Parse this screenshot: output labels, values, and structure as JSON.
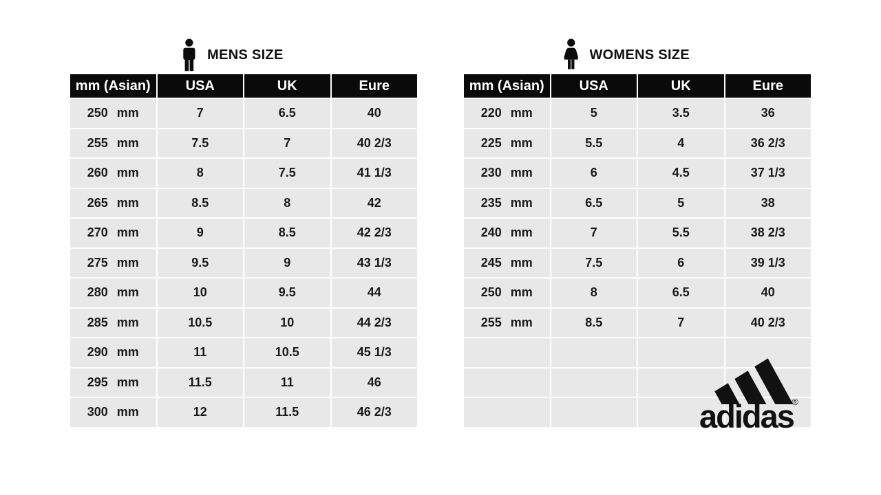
{
  "chart_data": [
    {
      "type": "table",
      "title": "MENS SIZE",
      "icon": "man-icon",
      "columns": [
        "mm (Asian)",
        "USA",
        "UK",
        "Eure"
      ],
      "rows": [
        [
          "250 mm",
          "7",
          "6.5",
          "40"
        ],
        [
          "255 mm",
          "7.5",
          "7",
          "40 2/3"
        ],
        [
          "260 mm",
          "8",
          "7.5",
          "41 1/3"
        ],
        [
          "265 mm",
          "8.5",
          "8",
          "42"
        ],
        [
          "270 mm",
          "9",
          "8.5",
          "42 2/3"
        ],
        [
          "275 mm",
          "9.5",
          "9",
          "43 1/3"
        ],
        [
          "280 mm",
          "10",
          "9.5",
          "44"
        ],
        [
          "285 mm",
          "10.5",
          "10",
          "44 2/3"
        ],
        [
          "290 mm",
          "11",
          "10.5",
          "45 1/3"
        ],
        [
          "295 mm",
          "11.5",
          "11",
          "46"
        ],
        [
          "300 mm",
          "12",
          "11.5",
          "46 2/3"
        ]
      ],
      "empty_rows": 0
    },
    {
      "type": "table",
      "title": "WOMENS SIZE",
      "icon": "woman-icon",
      "columns": [
        "mm (Asian)",
        "USA",
        "UK",
        "Eure"
      ],
      "rows": [
        [
          "220 mm",
          "5",
          "3.5",
          "36"
        ],
        [
          "225 mm",
          "5.5",
          "4",
          "36 2/3"
        ],
        [
          "230 mm",
          "6",
          "4.5",
          "37 1/3"
        ],
        [
          "235 mm",
          "6.5",
          "5",
          "38"
        ],
        [
          "240 mm",
          "7",
          "5.5",
          "38 2/3"
        ],
        [
          "245 mm",
          "7.5",
          "6",
          "39 1/3"
        ],
        [
          "250 mm",
          "8",
          "6.5",
          "40"
        ],
        [
          "255 mm",
          "8.5",
          "7",
          "40 2/3"
        ]
      ],
      "empty_rows": 3
    }
  ],
  "brand": {
    "logo_text": "adidas",
    "registered_mark": "®"
  },
  "colors": {
    "page_bg": "#ffffff",
    "header_bg": "#0a0a0a",
    "header_text": "#ffffff",
    "cell_bg": "#e8e8e8",
    "cell_text": "#1a1a1a",
    "logo_color": "#111111"
  }
}
